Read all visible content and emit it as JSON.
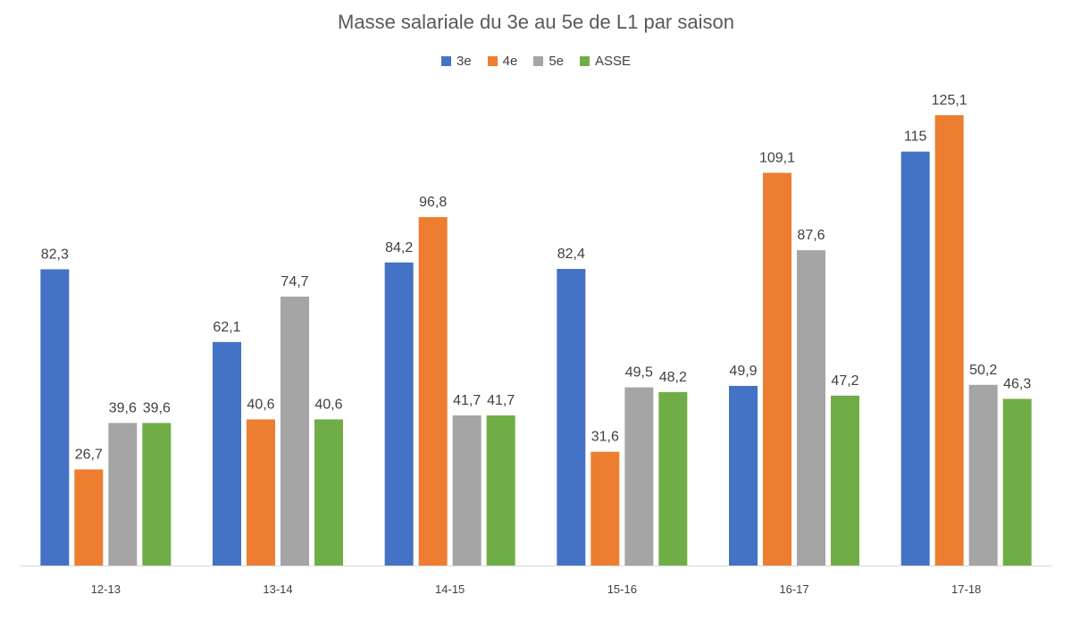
{
  "chart_data": {
    "type": "bar",
    "title": "Masse salariale du 3e au 5e de L1 par saison",
    "categories": [
      "12-13",
      "13-14",
      "14-15",
      "15-16",
      "16-17",
      "17-18"
    ],
    "series": [
      {
        "name": "3e",
        "color": "#4472C4",
        "values": [
          82.3,
          62.1,
          84.2,
          82.4,
          49.9,
          115
        ]
      },
      {
        "name": "4e",
        "color": "#ED7D31",
        "values": [
          26.7,
          40.6,
          96.8,
          31.6,
          109.1,
          125.1
        ]
      },
      {
        "name": "5e",
        "color": "#A5A5A5",
        "values": [
          39.6,
          74.7,
          41.7,
          49.5,
          87.6,
          50.2
        ]
      },
      {
        "name": "ASSE",
        "color": "#70AD47",
        "values": [
          39.6,
          40.6,
          41.7,
          48.2,
          47.2,
          46.3
        ]
      }
    ],
    "data_labels": [
      [
        "82,3",
        "62,1",
        "84,2",
        "82,4",
        "49,9",
        "115"
      ],
      [
        "26,7",
        "40,6",
        "96,8",
        "31,6",
        "109,1",
        "125,1"
      ],
      [
        "39,6",
        "74,7",
        "41,7",
        "49,5",
        "87,6",
        "50,2"
      ],
      [
        "39,6",
        "40,6",
        "41,7",
        "48,2",
        "47,2",
        "46,3"
      ]
    ],
    "xlabel": "",
    "ylabel": "",
    "ylim": [
      0,
      150
    ],
    "grid": false,
    "legend_position": "top-center"
  }
}
